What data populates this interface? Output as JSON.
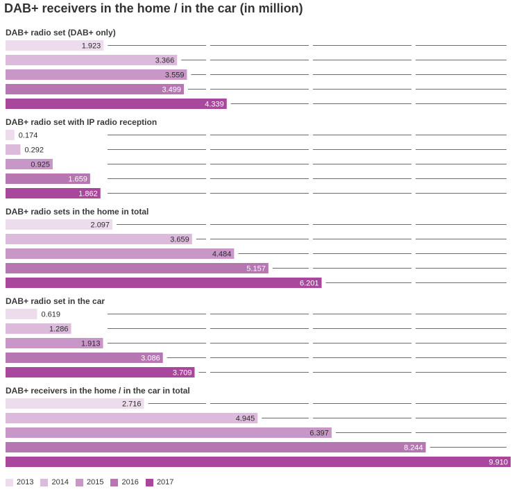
{
  "chart_data": {
    "type": "bar",
    "orientation": "horizontal",
    "title": "DAB+ receivers in the home / in the car (in million)",
    "xlim": [
      0,
      9.91
    ],
    "series": [
      {
        "name": "2013",
        "color": "#ecdcec"
      },
      {
        "name": "2014",
        "color": "#dcbadc"
      },
      {
        "name": "2015",
        "color": "#c997c7"
      },
      {
        "name": "2016",
        "color": "#b576b1"
      },
      {
        "name": "2017",
        "color": "#a8479b"
      }
    ],
    "groups": [
      {
        "title": "DAB+ radio set (DAB+ only)",
        "values": [
          1.923,
          3.366,
          3.559,
          3.499,
          4.339
        ],
        "labels": [
          "1.923",
          "3.366",
          "3.559",
          "3.499",
          "4.339"
        ]
      },
      {
        "title": "DAB+ radio set with IP radio reception",
        "values": [
          0.174,
          0.292,
          0.925,
          1.659,
          1.862
        ],
        "labels": [
          "0.174",
          "0.292",
          "0.925",
          "1.659",
          "1.862"
        ]
      },
      {
        "title": "DAB+ radio sets in the home in total",
        "values": [
          2.097,
          3.659,
          4.484,
          5.157,
          6.201
        ],
        "labels": [
          "2.097",
          "3.659",
          "4.484",
          "5.157",
          "6.201"
        ]
      },
      {
        "title": "DAB+ radio set in the car",
        "values": [
          0.619,
          1.286,
          1.913,
          3.086,
          3.709
        ],
        "labels": [
          "0.619",
          "1.286",
          "1.913",
          "3.086",
          "3.709"
        ]
      },
      {
        "title": "DAB+ receivers in the home / in the car in total",
        "values": [
          2.716,
          4.945,
          6.397,
          8.244,
          9.91
        ],
        "labels": [
          "2.716",
          "4.945",
          "6.397",
          "8.244",
          "9.910"
        ]
      }
    ],
    "legend_position": "bottom-left"
  }
}
